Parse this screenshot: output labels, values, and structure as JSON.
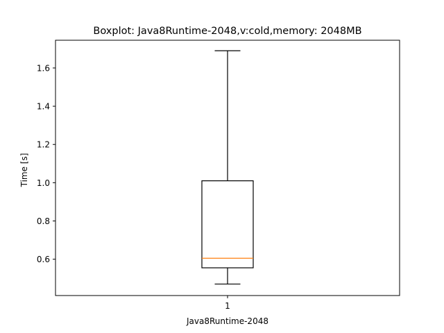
{
  "chart_data": {
    "type": "boxplot",
    "title": "Boxplot: Java8Runtime-2048,v:cold,memory: 2048MB",
    "xlabel": "Java8Runtime-2048",
    "ylabel": "Time [s]",
    "categories": [
      "1"
    ],
    "boxes": [
      {
        "category": "1",
        "whisker_low": 0.47,
        "q1": 0.555,
        "median": 0.605,
        "q3": 1.01,
        "whisker_high": 1.69
      }
    ],
    "ylim": [
      0.41,
      1.745
    ],
    "yticks": [
      0.6,
      0.8,
      1.0,
      1.2,
      1.4,
      1.6
    ],
    "ytick_labels": [
      "0.6",
      "0.8",
      "1.0",
      "1.2",
      "1.4",
      "1.6"
    ],
    "grid": false,
    "colors": {
      "median": "#ff7f0e",
      "box": "#000000"
    }
  }
}
